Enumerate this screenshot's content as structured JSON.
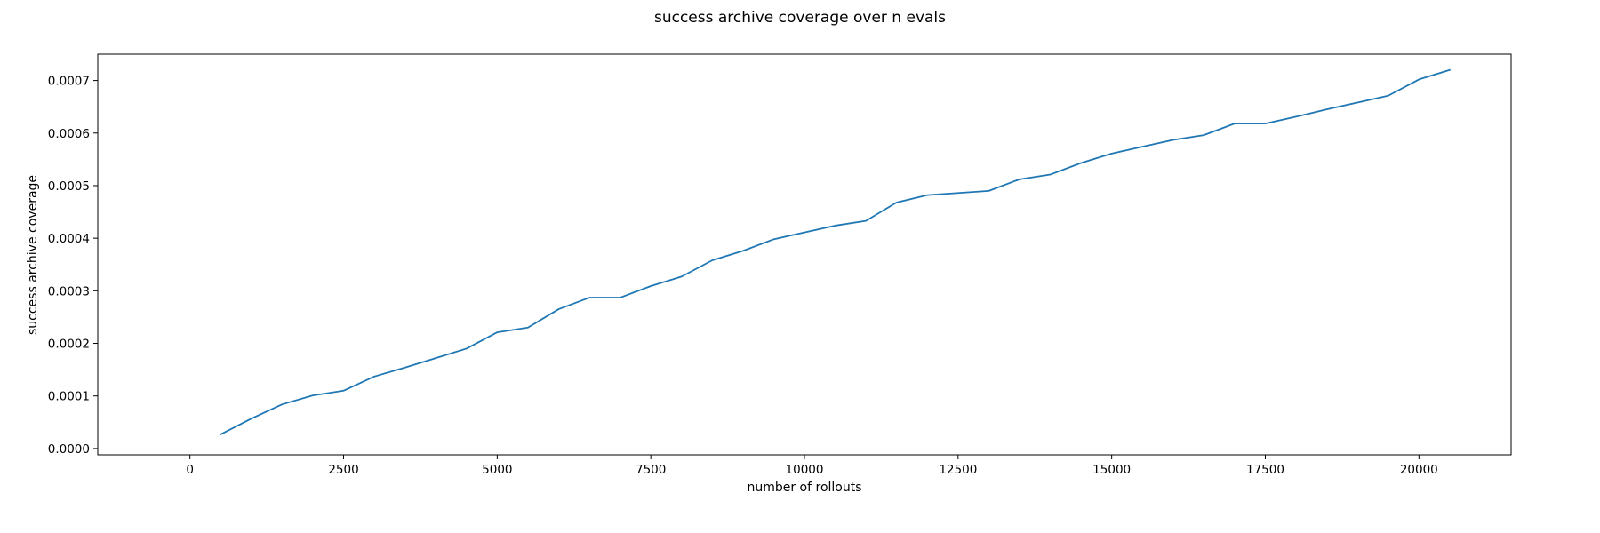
{
  "chart_data": {
    "type": "line",
    "title": "success archive coverage over n evals",
    "xlabel": "number of rollouts",
    "ylabel": "success archive coverage",
    "xlim": [
      -1500,
      21500
    ],
    "ylim": [
      -1.2e-05,
      0.00075
    ],
    "xticks": [
      0,
      2500,
      5000,
      7500,
      10000,
      12500,
      15000,
      17500,
      20000
    ],
    "xtick_labels": [
      "0",
      "2500",
      "5000",
      "7500",
      "10000",
      "12500",
      "15000",
      "17500",
      "20000"
    ],
    "yticks": [
      0,
      0.0001,
      0.0002,
      0.0003,
      0.0004,
      0.0005,
      0.0006,
      0.0007
    ],
    "ytick_labels": [
      "0.0000",
      "0.0001",
      "0.0002",
      "0.0003",
      "0.0004",
      "0.0005",
      "0.0006",
      "0.0007"
    ],
    "grid": false,
    "series": [
      {
        "color": "#1f77b4",
        "x": [
          500,
          1000,
          1500,
          2000,
          2500,
          3000,
          3500,
          4000,
          4500,
          5000,
          5500,
          6000,
          6500,
          7000,
          7500,
          8000,
          8500,
          9000,
          9500,
          10000,
          10500,
          11000,
          11500,
          12000,
          12500,
          13000,
          13500,
          14000,
          14500,
          15000,
          15500,
          16000,
          16500,
          17000,
          17500,
          18000,
          18500,
          19000,
          19500,
          20000,
          20500
        ],
        "y": [
          2.7e-05,
          5.7e-05,
          8.4e-05,
          0.000101,
          0.00011,
          0.000137,
          0.000154,
          0.000172,
          0.00019,
          0.000221,
          0.00023,
          0.000265,
          0.000287,
          0.000287,
          0.000309,
          0.000327,
          0.000358,
          0.000376,
          0.000398,
          0.000411,
          0.000424,
          0.000433,
          0.000468,
          0.000482,
          0.000486,
          0.00049,
          0.000512,
          0.000521,
          0.000543,
          0.000561,
          0.000574,
          0.000587,
          0.000596,
          0.000618,
          0.000618,
          0.000631,
          0.000645,
          0.000658,
          0.000671,
          0.000702,
          0.00072
        ]
      }
    ]
  }
}
